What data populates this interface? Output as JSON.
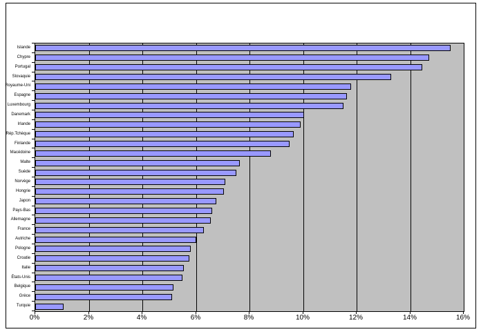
{
  "chart_data": {
    "type": "bar",
    "orientation": "horizontal",
    "title": "",
    "xlabel": "",
    "ylabel": "",
    "categories": [
      "Islande",
      "Chypre",
      "Portugal",
      "Slovaquie",
      "Royaume-Uni",
      "Espagne",
      "Luxembourg",
      "Danemark",
      "Irlande",
      "Rép.Tchèque",
      "Finlande",
      "Macédoine",
      "Malte",
      "Suède",
      "Norvège",
      "Hongrie",
      "Japon",
      "Pays-Bas",
      "Allemagne",
      "France",
      "Autriche",
      "Pologne",
      "Croatie",
      "Italie",
      "États-Unis",
      "Belgique",
      "Grèce",
      "Turquie"
    ],
    "values": [
      15.5,
      14.7,
      14.45,
      13.3,
      11.8,
      11.65,
      11.5,
      10.05,
      9.9,
      9.65,
      9.5,
      8.8,
      7.65,
      7.5,
      7.1,
      7.05,
      6.75,
      6.6,
      6.55,
      6.3,
      6.0,
      5.8,
      5.75,
      5.55,
      5.5,
      5.15,
      5.1,
      1.05
    ],
    "xlim": [
      0,
      16
    ],
    "x_tick_labels": [
      "0%",
      "2%",
      "4%",
      "6%",
      "8%",
      "10%",
      "12%",
      "14%",
      "16%"
    ],
    "grid": "vertical",
    "legend": "none",
    "colors": {
      "plot_background": "#C0C0C0",
      "bar_fill": "#9999FF",
      "bar_border": "#000000",
      "gridline": "#000000",
      "text": "#000000",
      "page_background": "#FFFFFF"
    }
  }
}
